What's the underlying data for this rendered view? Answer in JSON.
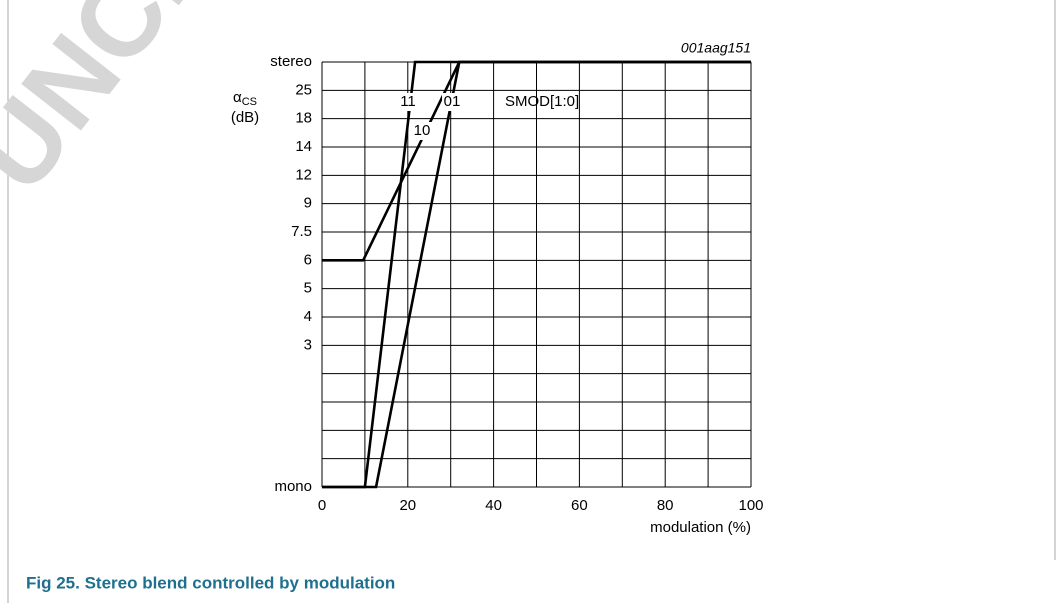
{
  "watermark": "UNCL",
  "caption": "Fig 25. Stereo blend controlled by modulation",
  "chart_data": {
    "type": "line",
    "code": "001aag151",
    "annotation": "SMOD[1:0]",
    "y_label": "α",
    "y_label_sub": "CS",
    "y_unit": "(dB)",
    "x_label": "modulation (%)",
    "xlim": [
      0,
      100
    ],
    "xticks": [
      0,
      {
        "value": 10,
        "label": null
      },
      20,
      {
        "value": 30,
        "label": null
      },
      40,
      {
        "value": 50,
        "label": null
      },
      60,
      {
        "value": 70,
        "label": null
      },
      80,
      {
        "value": 90,
        "label": null
      },
      100
    ],
    "ylim": [
      0,
      15
    ],
    "yticks": [
      {
        "value": 0,
        "label": "mono"
      },
      {
        "value": 1,
        "label": null
      },
      {
        "value": 2,
        "label": null
      },
      {
        "value": 3,
        "label": null
      },
      {
        "value": 4,
        "label": null
      },
      {
        "value": 5,
        "label": "3"
      },
      {
        "value": 6,
        "label": "4"
      },
      {
        "value": 7,
        "label": "5"
      },
      {
        "value": 8,
        "label": "6"
      },
      {
        "value": 9,
        "label": "7.5"
      },
      {
        "value": 10,
        "label": "9"
      },
      {
        "value": 11,
        "label": "12"
      },
      {
        "value": 12,
        "label": "14"
      },
      {
        "value": 13,
        "label": "18"
      },
      {
        "value": 14,
        "label": "25"
      },
      {
        "value": 15,
        "label": "stereo"
      }
    ],
    "grid": true,
    "series": [
      {
        "name": "11",
        "color": "#000000",
        "x": [
          0,
          10,
          21.7,
          100
        ],
        "values": [
          0,
          0,
          15,
          15
        ]
      },
      {
        "name": "10",
        "color": "#000000",
        "x": [
          0,
          9.6,
          32,
          100
        ],
        "values": [
          8,
          8,
          15,
          15
        ]
      },
      {
        "name": "01",
        "color": "#000000",
        "x": [
          0,
          12.6,
          32,
          100
        ],
        "values": [
          0,
          0,
          15,
          15
        ]
      }
    ]
  }
}
